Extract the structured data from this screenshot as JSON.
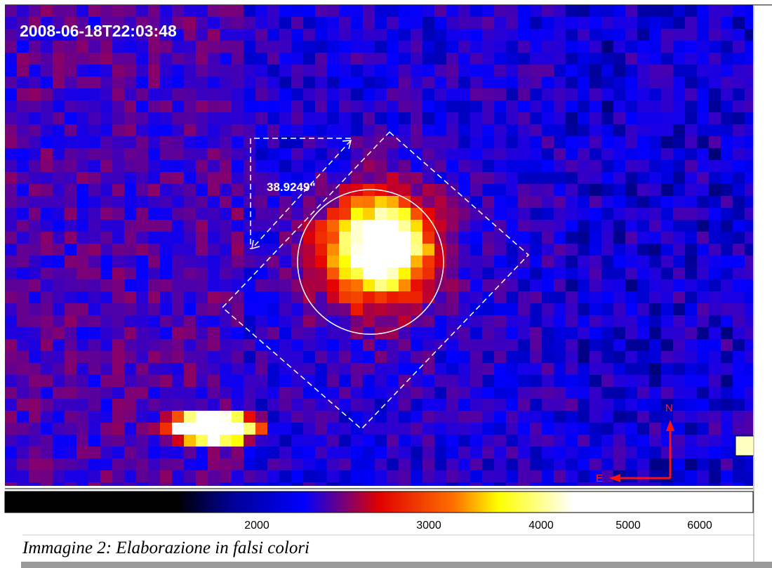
{
  "image": {
    "timestamp": "2008-06-18T22:03:48",
    "measurement": "38.9249\"",
    "compass": {
      "north": "N",
      "east": "E"
    }
  },
  "colorbar": {
    "ticks": [
      "2000",
      "3000",
      "4000",
      "5000",
      "6000"
    ]
  },
  "caption": "Immagine 2: Elaborazione in falsi colori"
}
